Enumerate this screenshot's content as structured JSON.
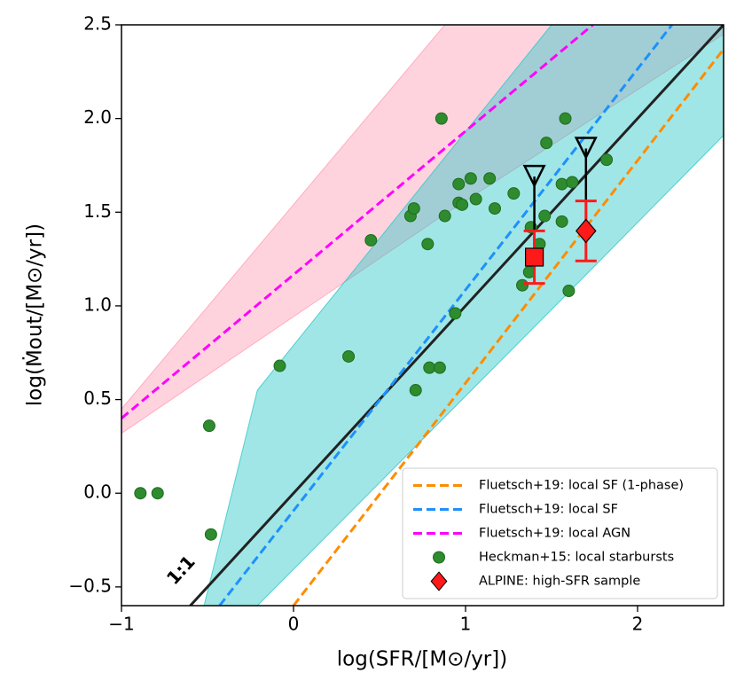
{
  "chart_data": {
    "type": "scatter",
    "xlabel": "log(SFR/[M⊙/yr])",
    "ylabel": "log(Ṁout/[M⊙/yr])",
    "xlim": [
      -1,
      2.5
    ],
    "ylim": [
      -0.6,
      2.5
    ],
    "xticks": [
      {
        "value": -1,
        "label": "−1"
      },
      0,
      1,
      2
    ],
    "yticks": [
      {
        "value": -0.5,
        "label": "−0.5"
      },
      {
        "value": 0,
        "label": "0.0"
      },
      0.5,
      {
        "value": 1,
        "label": "1.0"
      },
      1.5,
      {
        "value": 2,
        "label": "2.0"
      },
      2.5
    ],
    "legend": "lower right",
    "bands": [
      {
        "color": "#ff9eb5",
        "x": [
          -1,
          0.88,
          2.5
        ],
        "lower": [
          0.32,
          1.49,
          2.45
        ],
        "upper": [
          0.45,
          2.5,
          2.5
        ]
      },
      {
        "color": "#2ec8c8",
        "x": [
          -0.52,
          -0.21,
          1.5,
          2.5
        ],
        "lower": [
          -0.6,
          -0.6,
          0.98,
          1.91
        ],
        "upper": [
          -0.6,
          0.55,
          2.5,
          2.5
        ]
      }
    ],
    "reference_line": {
      "label": "1:1",
      "color": "#222222",
      "x": [
        -0.6,
        2.5
      ],
      "values": [
        -0.6,
        2.5
      ]
    },
    "series": [
      {
        "name": "Fluetsch+19: local SF (1-phase)",
        "kind": "dashed",
        "color": "#ff8c00",
        "x": [
          0.0,
          2.5
        ],
        "values": [
          -0.6,
          2.37
        ]
      },
      {
        "name": "Fluetsch+19: local SF",
        "kind": "dashed",
        "color": "#1e90ff",
        "x": [
          -0.43,
          2.2
        ],
        "values": [
          -0.6,
          2.5
        ]
      },
      {
        "name": "Fluetsch+19: local AGN",
        "kind": "dashed",
        "color": "#ff00ff",
        "x": [
          -1,
          1.74
        ],
        "values": [
          0.4,
          2.5
        ]
      },
      {
        "name": "Heckman+15: local starbursts",
        "kind": "points",
        "color": "#2e8b2e",
        "x": [
          -0.89,
          -0.79,
          -0.49,
          -0.48,
          -0.08,
          0.32,
          0.45,
          0.68,
          0.7,
          0.78,
          0.71,
          0.79,
          0.85,
          0.86,
          0.88,
          0.94,
          0.96,
          0.96,
          0.98,
          1.03,
          1.06,
          1.14,
          1.17,
          1.28,
          1.33,
          1.37,
          1.38,
          1.43,
          1.46,
          1.47,
          1.56,
          1.56,
          1.58,
          1.62,
          1.6,
          1.82
        ],
        "values": [
          0.0,
          0.0,
          0.36,
          -0.22,
          0.68,
          0.73,
          1.35,
          1.48,
          1.52,
          1.33,
          0.55,
          0.67,
          0.67,
          2.0,
          1.48,
          0.96,
          1.65,
          1.55,
          1.54,
          1.68,
          1.57,
          1.68,
          1.52,
          1.6,
          1.11,
          1.18,
          1.42,
          1.33,
          1.48,
          1.87,
          1.45,
          1.65,
          2.0,
          1.66,
          1.08,
          1.78
        ]
      },
      {
        "name": "ALPINE: high-SFR sample",
        "kind": "alpine",
        "color": "#ff1a1a",
        "markers": [
          "square",
          "diamond"
        ],
        "x": [
          1.4,
          1.7
        ],
        "values": [
          1.26,
          1.4
        ],
        "yerr": [
          0.14,
          0.16
        ],
        "upper_limits": [
          1.69,
          1.84
        ]
      }
    ]
  }
}
